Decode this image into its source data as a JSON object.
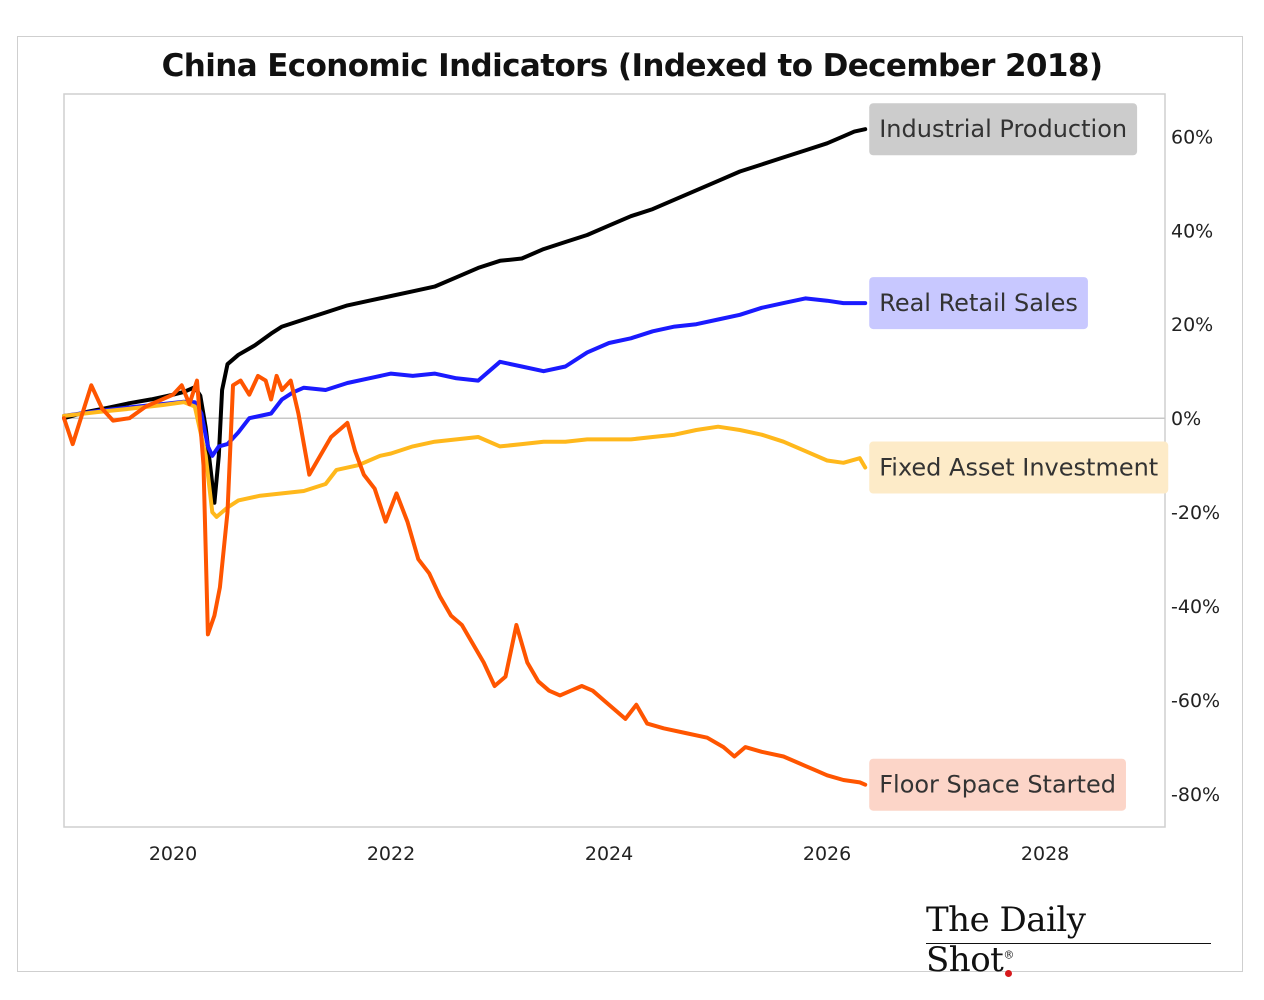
{
  "chart_data": {
    "type": "line",
    "title": "China Economic Indicators (Indexed to December 2018)",
    "xlim": [
      2019.0,
      2029.1
    ],
    "ylim": [
      -87,
      69
    ],
    "x_ticks": [
      2020,
      2022,
      2024,
      2026,
      2028
    ],
    "y_ticks": [
      60,
      40,
      20,
      0,
      -20,
      -40,
      -60,
      -80
    ],
    "y_tick_labels": [
      "60%",
      "40%",
      "20%",
      "0%",
      "-20%",
      "-40%",
      "-60%",
      "-80%"
    ],
    "zero_line": 0,
    "y_axis_side": "right",
    "series": [
      {
        "name": "Industrial Production",
        "color": "#000000",
        "label_bg": "#cccccc",
        "points": [
          [
            2019.0,
            0
          ],
          [
            2019.2,
            1.3
          ],
          [
            2019.4,
            2.2
          ],
          [
            2019.6,
            3.2
          ],
          [
            2019.8,
            4.0
          ],
          [
            2020.0,
            5.0
          ],
          [
            2020.1,
            5.6
          ],
          [
            2020.2,
            6.6
          ],
          [
            2020.25,
            4.8
          ],
          [
            2020.3,
            -2
          ],
          [
            2020.35,
            -12
          ],
          [
            2020.38,
            -18
          ],
          [
            2020.42,
            -8
          ],
          [
            2020.45,
            6
          ],
          [
            2020.5,
            11.5
          ],
          [
            2020.6,
            13.5
          ],
          [
            2020.75,
            15.5
          ],
          [
            2020.9,
            18
          ],
          [
            2021.0,
            19.5
          ],
          [
            2021.2,
            21
          ],
          [
            2021.4,
            22.5
          ],
          [
            2021.6,
            24
          ],
          [
            2021.8,
            25
          ],
          [
            2022.0,
            26
          ],
          [
            2022.2,
            27
          ],
          [
            2022.4,
            28
          ],
          [
            2022.6,
            30
          ],
          [
            2022.8,
            32
          ],
          [
            2023.0,
            33.5
          ],
          [
            2023.2,
            34
          ],
          [
            2023.4,
            36
          ],
          [
            2023.6,
            37.5
          ],
          [
            2023.8,
            39
          ],
          [
            2024.0,
            41
          ],
          [
            2024.2,
            43
          ],
          [
            2024.4,
            44.5
          ],
          [
            2024.6,
            46.5
          ],
          [
            2024.8,
            48.5
          ],
          [
            2025.0,
            50.5
          ],
          [
            2025.2,
            52.5
          ],
          [
            2025.4,
            54
          ],
          [
            2025.6,
            55.5
          ],
          [
            2025.8,
            57
          ],
          [
            2026.0,
            58.5
          ],
          [
            2026.15,
            60
          ],
          [
            2026.25,
            61
          ],
          [
            2026.35,
            61.5
          ]
        ]
      },
      {
        "name": "Real Retail Sales",
        "color": "#1a1aff",
        "label_bg": "#c8c8ff",
        "points": [
          [
            2019.0,
            0.5
          ],
          [
            2019.3,
            1.5
          ],
          [
            2019.6,
            2.3
          ],
          [
            2019.9,
            3
          ],
          [
            2020.1,
            3.5
          ],
          [
            2020.2,
            3.4
          ],
          [
            2020.26,
            1
          ],
          [
            2020.32,
            -6
          ],
          [
            2020.36,
            -8
          ],
          [
            2020.42,
            -6
          ],
          [
            2020.5,
            -5.5
          ],
          [
            2020.6,
            -3
          ],
          [
            2020.7,
            0
          ],
          [
            2020.9,
            1
          ],
          [
            2021.0,
            4
          ],
          [
            2021.1,
            5.5
          ],
          [
            2021.2,
            6.5
          ],
          [
            2021.4,
            6
          ],
          [
            2021.6,
            7.5
          ],
          [
            2021.8,
            8.5
          ],
          [
            2022.0,
            9.5
          ],
          [
            2022.2,
            9
          ],
          [
            2022.4,
            9.5
          ],
          [
            2022.6,
            8.5
          ],
          [
            2022.8,
            8
          ],
          [
            2023.0,
            12
          ],
          [
            2023.2,
            11
          ],
          [
            2023.4,
            10
          ],
          [
            2023.6,
            11
          ],
          [
            2023.8,
            14
          ],
          [
            2024.0,
            16
          ],
          [
            2024.2,
            17
          ],
          [
            2024.4,
            18.5
          ],
          [
            2024.6,
            19.5
          ],
          [
            2024.8,
            20
          ],
          [
            2025.0,
            21
          ],
          [
            2025.2,
            22
          ],
          [
            2025.4,
            23.5
          ],
          [
            2025.6,
            24.5
          ],
          [
            2025.8,
            25.5
          ],
          [
            2026.0,
            25
          ],
          [
            2026.15,
            24.5
          ],
          [
            2026.3,
            24.5
          ],
          [
            2026.35,
            24.5
          ]
        ]
      },
      {
        "name": "Fixed Asset Investment",
        "color": "#ffb81c",
        "label_bg": "#fdebc8",
        "points": [
          [
            2019.0,
            0.5
          ],
          [
            2019.3,
            1.3
          ],
          [
            2019.6,
            2.0
          ],
          [
            2019.9,
            2.8
          ],
          [
            2020.1,
            3.4
          ],
          [
            2020.2,
            2.5
          ],
          [
            2020.3,
            -8
          ],
          [
            2020.36,
            -20
          ],
          [
            2020.4,
            -21
          ],
          [
            2020.5,
            -19
          ],
          [
            2020.6,
            -17.5
          ],
          [
            2020.8,
            -16.5
          ],
          [
            2021.0,
            -16
          ],
          [
            2021.2,
            -15.5
          ],
          [
            2021.4,
            -14
          ],
          [
            2021.5,
            -11
          ],
          [
            2021.7,
            -10
          ],
          [
            2021.9,
            -8
          ],
          [
            2022.0,
            -7.5
          ],
          [
            2022.2,
            -6
          ],
          [
            2022.4,
            -5
          ],
          [
            2022.6,
            -4.5
          ],
          [
            2022.8,
            -4
          ],
          [
            2023.0,
            -6
          ],
          [
            2023.2,
            -5.5
          ],
          [
            2023.4,
            -5
          ],
          [
            2023.6,
            -5
          ],
          [
            2023.8,
            -4.5
          ],
          [
            2024.0,
            -4.5
          ],
          [
            2024.2,
            -4.5
          ],
          [
            2024.4,
            -4
          ],
          [
            2024.6,
            -3.5
          ],
          [
            2024.8,
            -2.5
          ],
          [
            2025.0,
            -1.8
          ],
          [
            2025.2,
            -2.5
          ],
          [
            2025.4,
            -3.5
          ],
          [
            2025.6,
            -5
          ],
          [
            2025.8,
            -7
          ],
          [
            2026.0,
            -9
          ],
          [
            2026.15,
            -9.5
          ],
          [
            2026.3,
            -8.5
          ],
          [
            2026.35,
            -10.5
          ]
        ]
      },
      {
        "name": "Floor Space Started",
        "color": "#ff5500",
        "label_bg": "#fcd5c8",
        "points": [
          [
            2019.0,
            0
          ],
          [
            2019.08,
            -5.5
          ],
          [
            2019.25,
            7
          ],
          [
            2019.35,
            2
          ],
          [
            2019.45,
            -0.5
          ],
          [
            2019.6,
            0
          ],
          [
            2019.75,
            2.5
          ],
          [
            2019.9,
            4
          ],
          [
            2020.0,
            5
          ],
          [
            2020.08,
            7
          ],
          [
            2020.15,
            3
          ],
          [
            2020.22,
            8
          ],
          [
            2020.28,
            -10
          ],
          [
            2020.32,
            -46
          ],
          [
            2020.38,
            -42
          ],
          [
            2020.43,
            -36
          ],
          [
            2020.5,
            -20
          ],
          [
            2020.55,
            7
          ],
          [
            2020.62,
            8
          ],
          [
            2020.7,
            5
          ],
          [
            2020.78,
            9
          ],
          [
            2020.85,
            8
          ],
          [
            2020.9,
            4
          ],
          [
            2020.95,
            9
          ],
          [
            2021.0,
            6
          ],
          [
            2021.08,
            8
          ],
          [
            2021.15,
            1
          ],
          [
            2021.25,
            -12
          ],
          [
            2021.35,
            -8
          ],
          [
            2021.45,
            -4
          ],
          [
            2021.55,
            -2
          ],
          [
            2021.6,
            -1
          ],
          [
            2021.67,
            -7
          ],
          [
            2021.75,
            -12
          ],
          [
            2021.85,
            -15
          ],
          [
            2021.95,
            -22
          ],
          [
            2022.05,
            -16
          ],
          [
            2022.15,
            -22
          ],
          [
            2022.25,
            -30
          ],
          [
            2022.35,
            -33
          ],
          [
            2022.45,
            -38
          ],
          [
            2022.55,
            -42
          ],
          [
            2022.65,
            -44
          ],
          [
            2022.75,
            -48
          ],
          [
            2022.85,
            -52
          ],
          [
            2022.95,
            -57
          ],
          [
            2023.05,
            -55
          ],
          [
            2023.15,
            -44
          ],
          [
            2023.25,
            -52
          ],
          [
            2023.35,
            -56
          ],
          [
            2023.45,
            -58
          ],
          [
            2023.55,
            -59
          ],
          [
            2023.65,
            -58
          ],
          [
            2023.75,
            -57
          ],
          [
            2023.85,
            -58
          ],
          [
            2023.95,
            -60
          ],
          [
            2024.05,
            -62
          ],
          [
            2024.15,
            -64
          ],
          [
            2024.25,
            -61
          ],
          [
            2024.35,
            -65
          ],
          [
            2024.5,
            -66
          ],
          [
            2024.7,
            -67
          ],
          [
            2024.9,
            -68
          ],
          [
            2025.05,
            -70
          ],
          [
            2025.15,
            -72
          ],
          [
            2025.25,
            -70
          ],
          [
            2025.4,
            -71
          ],
          [
            2025.6,
            -72
          ],
          [
            2025.8,
            -74
          ],
          [
            2025.9,
            -75
          ],
          [
            2026.0,
            -76
          ],
          [
            2026.15,
            -77
          ],
          [
            2026.3,
            -77.5
          ],
          [
            2026.35,
            -78
          ]
        ]
      }
    ]
  },
  "brand": {
    "text": "The Daily Shot",
    "mark": "®"
  }
}
